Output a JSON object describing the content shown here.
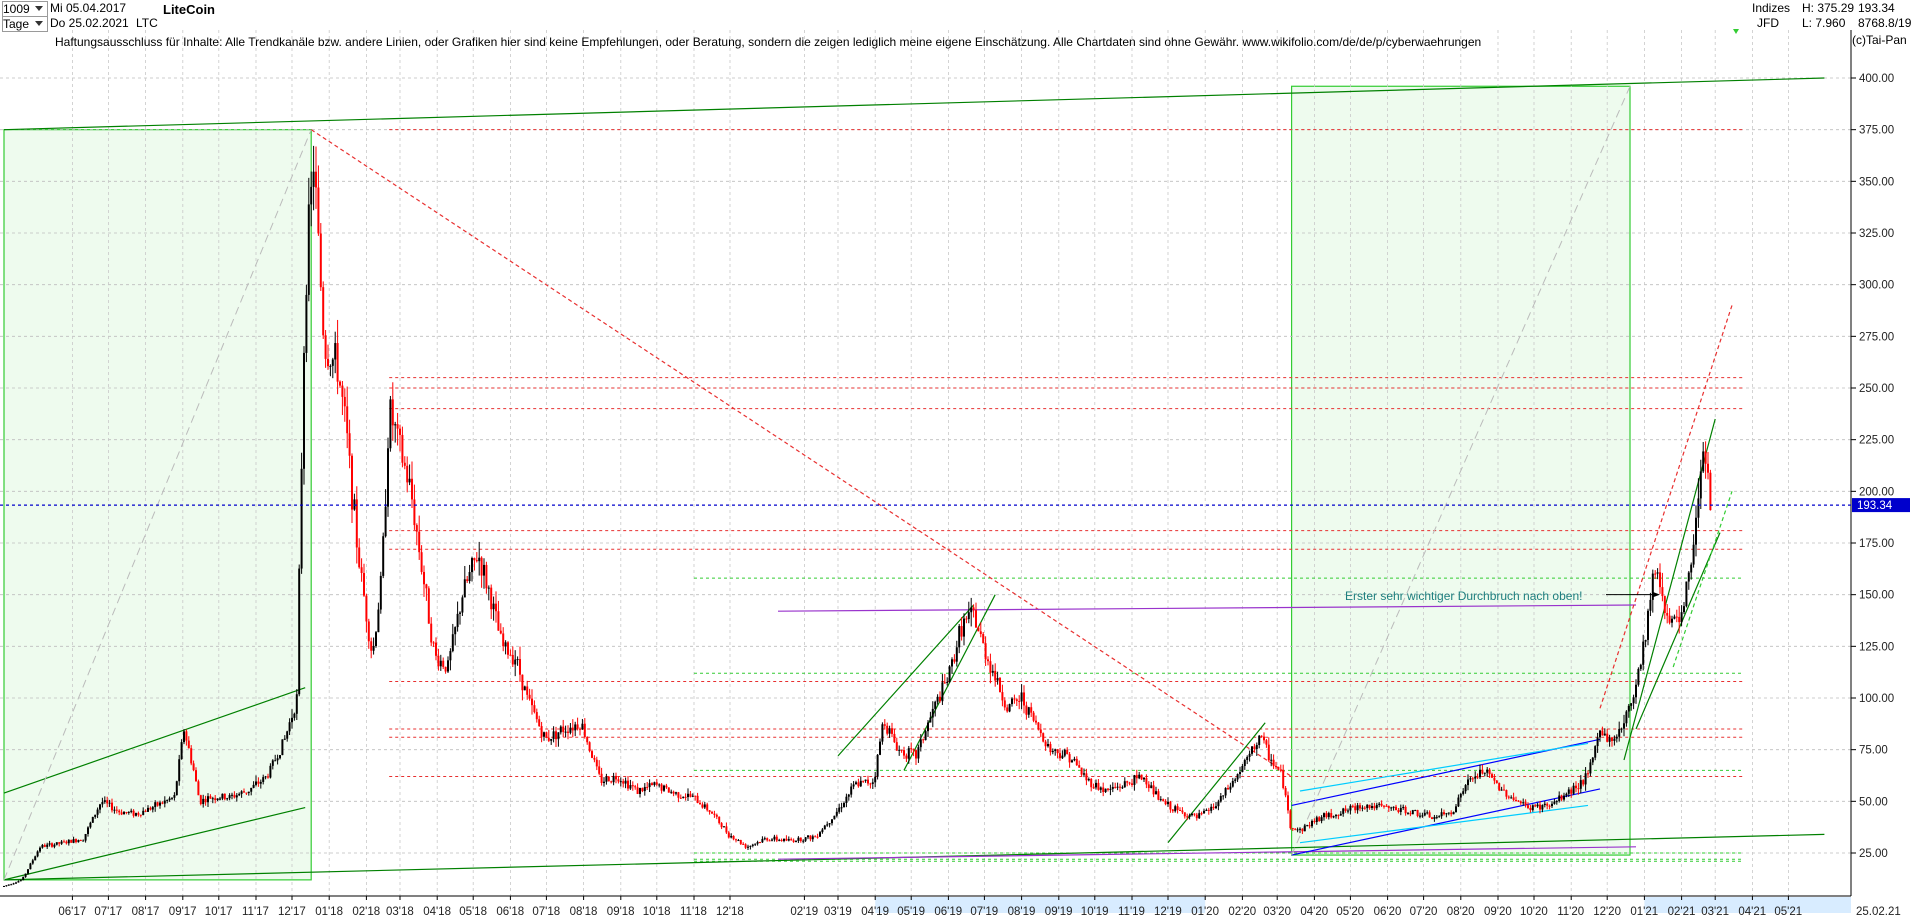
{
  "header": {
    "period_count": "1009",
    "start_date": "Mi 05.04.2017",
    "interval": "Tage",
    "end_date": "Do 25.02.2021",
    "symbol": "LTC",
    "instrument": "LiteCoin",
    "market": "Indizes",
    "source": "JFD",
    "high": "H: 375.29",
    "low": "L: 7.960",
    "last": "193.34",
    "code": "8768.8/19",
    "copyright": "(c)Tai-Pan",
    "disclaimer": "Haftungsausschluss für Inhalte: Alle Trendkanäle bzw. andere Linien, oder Grafiken hier sind keine Empfehlungen, oder Beratung, sondern die zeigen lediglich meine eigene Einschätzung. Alle Chartdaten sind ohne Gewähr.  www.wikifolio.com/de/de/p/cyberwaehrungen"
  },
  "annotation": "Erster sehr wichtiger Durchbruch nach oben!",
  "colors": {
    "candle_up": "#000000",
    "candle_down": "#ff0000",
    "trend_green": "#008000",
    "light_green": "#33cc33",
    "zone_fill": "#eefbee",
    "resistance_red": "#e83030",
    "purple": "#9933cc",
    "blue": "#0000ff",
    "cyan": "#00ccff",
    "last_price": "#0000cc"
  },
  "chart_data": {
    "type": "candlestick",
    "title": "LiteCoin",
    "interval": "Tage",
    "ylim": [
      12,
      412
    ],
    "y_ticks": [
      "25.00",
      "50.00",
      "75.00",
      "100.00",
      "125.00",
      "150.00",
      "175.00",
      "200.00",
      "225.00",
      "250.00",
      "275.00",
      "300.00",
      "325.00",
      "350.00",
      "375.00",
      "400.00"
    ],
    "x_ticks": [
      "06'17",
      "07'17",
      "08'17",
      "09'17",
      "10'17",
      "11'17",
      "12'17",
      "01'18",
      "02'18",
      "03'18",
      "04'18",
      "05'18",
      "06'18",
      "07'18",
      "08'18",
      "09'18",
      "10'18",
      "11'18",
      "12'18",
      "02'19",
      "03'19",
      "04'19",
      "05'19",
      "06'19",
      "07'19",
      "08'19",
      "09'19",
      "10'19",
      "11'19",
      "12'19",
      "01'20",
      "02'20",
      "03'20",
      "04'20",
      "05'20",
      "06'20",
      "07'20",
      "08'20",
      "09'20",
      "10'20",
      "11'20",
      "12'20",
      "01'21",
      "02'21",
      "03'21",
      "04'21",
      "05'21"
    ],
    "last_date": "25.02.21",
    "last_value": 193.34,
    "last_value_label": "193.34",
    "high": 375.29,
    "low": 7.96,
    "price_path": [
      [
        "2017-04-05",
        9
      ],
      [
        "2017-04-20",
        12
      ],
      [
        "2017-05-05",
        28
      ],
      [
        "2017-05-25",
        30
      ],
      [
        "2017-06-10",
        32
      ],
      [
        "2017-06-25",
        50
      ],
      [
        "2017-07-10",
        45
      ],
      [
        "2017-07-25",
        44
      ],
      [
        "2017-08-10",
        48
      ],
      [
        "2017-08-25",
        52
      ],
      [
        "2017-09-02",
        85
      ],
      [
        "2017-09-10",
        65
      ],
      [
        "2017-09-15",
        50
      ],
      [
        "2017-09-25",
        52
      ],
      [
        "2017-10-10",
        52
      ],
      [
        "2017-10-25",
        55
      ],
      [
        "2017-11-10",
        62
      ],
      [
        "2017-11-25",
        80
      ],
      [
        "2017-12-05",
        100
      ],
      [
        "2017-12-12",
        300
      ],
      [
        "2017-12-19",
        360
      ],
      [
        "2017-12-28",
        270
      ],
      [
        "2018-01-08",
        260
      ],
      [
        "2018-01-15",
        230
      ],
      [
        "2018-01-25",
        170
      ],
      [
        "2018-02-06",
        120
      ],
      [
        "2018-02-14",
        160
      ],
      [
        "2018-02-20",
        240
      ],
      [
        "2018-03-01",
        220
      ],
      [
        "2018-03-10",
        200
      ],
      [
        "2018-03-20",
        160
      ],
      [
        "2018-03-30",
        120
      ],
      [
        "2018-04-10",
        115
      ],
      [
        "2018-04-22",
        150
      ],
      [
        "2018-05-05",
        170
      ],
      [
        "2018-05-15",
        150
      ],
      [
        "2018-05-25",
        125
      ],
      [
        "2018-06-05",
        120
      ],
      [
        "2018-06-15",
        100
      ],
      [
        "2018-06-30",
        80
      ],
      [
        "2018-07-15",
        85
      ],
      [
        "2018-07-30",
        88
      ],
      [
        "2018-08-15",
        60
      ],
      [
        "2018-08-30",
        62
      ],
      [
        "2018-09-15",
        55
      ],
      [
        "2018-09-30",
        58
      ],
      [
        "2018-10-15",
        54
      ],
      [
        "2018-10-31",
        52
      ],
      [
        "2018-11-15",
        45
      ],
      [
        "2018-11-30",
        34
      ],
      [
        "2018-12-15",
        28
      ],
      [
        "2018-12-31",
        32
      ],
      [
        "2019-01-20",
        31
      ],
      [
        "2019-02-10",
        33
      ],
      [
        "2019-02-28",
        45
      ],
      [
        "2019-03-15",
        58
      ],
      [
        "2019-03-31",
        60
      ],
      [
        "2019-04-08",
        90
      ],
      [
        "2019-04-20",
        75
      ],
      [
        "2019-05-05",
        72
      ],
      [
        "2019-05-20",
        95
      ],
      [
        "2019-06-01",
        110
      ],
      [
        "2019-06-12",
        135
      ],
      [
        "2019-06-22",
        140
      ],
      [
        "2019-06-30",
        125
      ],
      [
        "2019-07-10",
        110
      ],
      [
        "2019-07-20",
        95
      ],
      [
        "2019-08-01",
        100
      ],
      [
        "2019-08-10",
        90
      ],
      [
        "2019-08-25",
        75
      ],
      [
        "2019-09-10",
        72
      ],
      [
        "2019-09-25",
        60
      ],
      [
        "2019-10-10",
        55
      ],
      [
        "2019-10-25",
        58
      ],
      [
        "2019-11-10",
        62
      ],
      [
        "2019-11-25",
        50
      ],
      [
        "2019-12-10",
        45
      ],
      [
        "2019-12-25",
        42
      ],
      [
        "2020-01-10",
        48
      ],
      [
        "2020-01-25",
        60
      ],
      [
        "2020-02-10",
        75
      ],
      [
        "2020-02-15",
        82
      ],
      [
        "2020-02-25",
        70
      ],
      [
        "2020-03-05",
        62
      ],
      [
        "2020-03-12",
        38
      ],
      [
        "2020-03-20",
        36
      ],
      [
        "2020-04-05",
        42
      ],
      [
        "2020-04-25",
        45
      ],
      [
        "2020-05-10",
        48
      ],
      [
        "2020-05-30",
        47
      ],
      [
        "2020-06-20",
        45
      ],
      [
        "2020-07-10",
        42
      ],
      [
        "2020-07-25",
        45
      ],
      [
        "2020-08-05",
        58
      ],
      [
        "2020-08-20",
        65
      ],
      [
        "2020-09-05",
        55
      ],
      [
        "2020-09-25",
        47
      ],
      [
        "2020-10-15",
        48
      ],
      [
        "2020-10-31",
        55
      ],
      [
        "2020-11-15",
        62
      ],
      [
        "2020-11-25",
        85
      ],
      [
        "2020-12-05",
        78
      ],
      [
        "2020-12-20",
        95
      ],
      [
        "2020-12-31",
        125
      ],
      [
        "2021-01-10",
        165
      ],
      [
        "2021-01-20",
        140
      ],
      [
        "2021-01-31",
        135
      ],
      [
        "2021-02-10",
        170
      ],
      [
        "2021-02-20",
        230
      ],
      [
        "2021-02-25",
        193.34
      ]
    ]
  },
  "overlays": {
    "dashed_levels_red": [
      375,
      255,
      250,
      240,
      181,
      172,
      108,
      85,
      81,
      62
    ],
    "dashed_levels_green": [
      158,
      112,
      65,
      25,
      22,
      21
    ],
    "last_price_level": 193.34,
    "zones": [
      {
        "from": "2017-04-05",
        "to": "2017-12-17",
        "bottom": 12,
        "top": 375
      },
      {
        "from": "2020-03-13",
        "to": "2020-12-20",
        "bottom": 24,
        "top": 396
      }
    ],
    "trend_lines": [
      {
        "color": "trend_green",
        "from": [
          "2017-04-05",
          375
        ],
        "to": [
          "2021-05-31",
          400
        ]
      },
      {
        "color": "trend_green",
        "from": [
          "2017-04-05",
          12
        ],
        "to": [
          "2021-05-31",
          34
        ]
      },
      {
        "color": "trend_green",
        "from": [
          "2017-04-05",
          54
        ],
        "to": [
          "2017-12-12",
          105
        ]
      },
      {
        "color": "trend_green",
        "from": [
          "2017-04-05",
          12
        ],
        "to": [
          "2017-12-12",
          47
        ]
      },
      {
        "color": "resistance_red",
        "from": [
          "2017-12-17",
          375
        ],
        "to": [
          "2020-03-13",
          62
        ],
        "dashed": true
      },
      {
        "color": "purple",
        "from": [
          "2019-01-10",
          142
        ],
        "to": [
          "2020-12-25",
          145
        ]
      },
      {
        "color": "purple",
        "from": [
          "2019-01-10",
          22
        ],
        "to": [
          "2020-12-25",
          28
        ]
      },
      {
        "color": "blue",
        "from": [
          "2020-03-13",
          24
        ],
        "to": [
          "2020-11-25",
          56
        ]
      },
      {
        "color": "blue",
        "from": [
          "2020-03-13",
          48
        ],
        "to": [
          "2020-11-25",
          80
        ]
      },
      {
        "color": "cyan",
        "from": [
          "2020-03-20",
          55
        ],
        "to": [
          "2020-11-15",
          78
        ]
      },
      {
        "color": "cyan",
        "from": [
          "2020-03-20",
          30
        ],
        "to": [
          "2020-11-15",
          48
        ]
      },
      {
        "color": "trend_green",
        "from": [
          "2019-03-01",
          72
        ],
        "to": [
          "2019-06-22",
          145
        ]
      },
      {
        "color": "trend_green",
        "from": [
          "2019-07-10",
          150
        ],
        "to": [
          "2019-04-25",
          65
        ]
      },
      {
        "color": "trend_green",
        "from": [
          "2019-12-01",
          30
        ],
        "to": [
          "2020-02-20",
          88
        ]
      },
      {
        "color": "trend_green",
        "from": [
          "2020-12-15",
          70
        ],
        "to": [
          "2021-03-01",
          235
        ]
      },
      {
        "color": "trend_green",
        "from": [
          "2020-12-25",
          85
        ],
        "to": [
          "2021-03-05",
          180
        ]
      },
      {
        "color": "resistance_red",
        "from": [
          "2020-11-25",
          95
        ],
        "to": [
          "2021-03-15",
          290
        ],
        "dashed": true
      },
      {
        "color": "light_green",
        "from": [
          "2021-01-25",
          115
        ],
        "to": [
          "2021-03-15",
          200
        ],
        "dashed": true
      }
    ]
  }
}
